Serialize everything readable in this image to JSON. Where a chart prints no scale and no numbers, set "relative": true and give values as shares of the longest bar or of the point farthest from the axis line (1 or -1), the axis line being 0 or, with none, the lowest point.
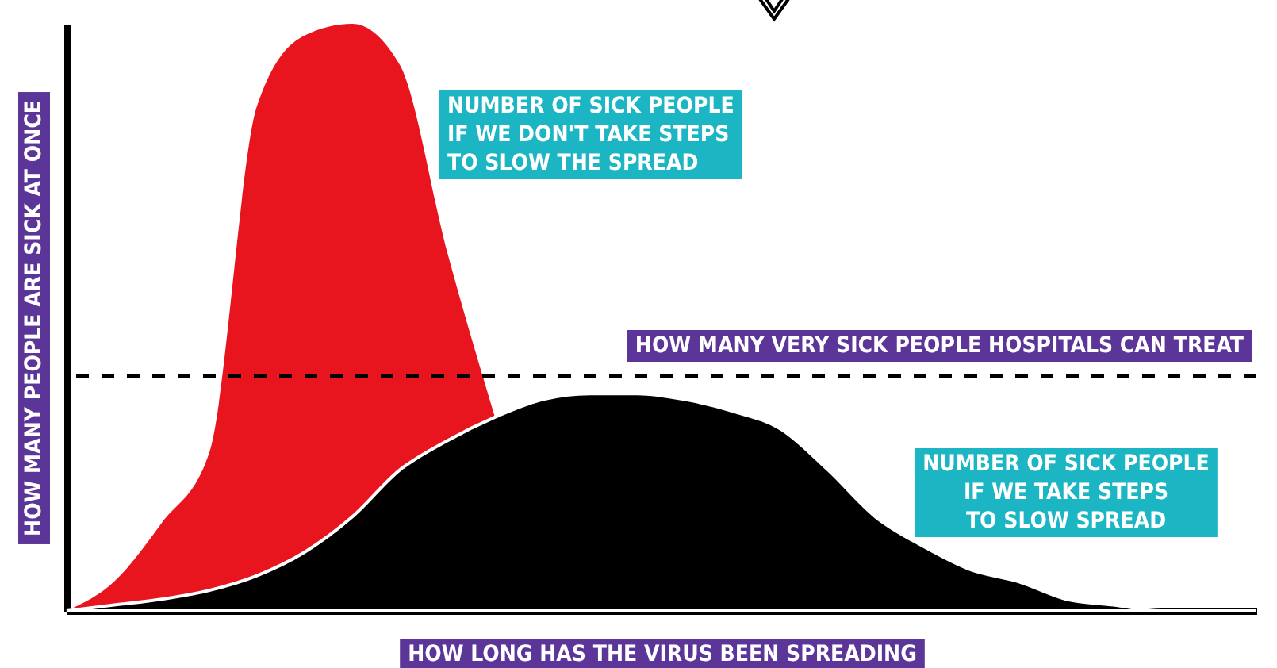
{
  "chart_data": {
    "type": "area",
    "relative": true,
    "xlabel": "HOW LONG HAS THE VIRUS BEEN SPREADING",
    "ylabel": "HOW MANY PEOPLE ARE SICK AT ONCE",
    "categories": [
      null,
      null,
      null,
      null,
      null,
      null,
      null,
      null,
      null,
      null,
      null,
      null,
      null,
      null,
      null,
      null,
      null,
      null,
      null,
      null,
      null,
      null,
      null,
      null,
      null,
      null
    ],
    "series": [
      {
        "name": "NUMBER OF SICK PEOPLE\nIF WE DON'T TAKE STEPS\nTO SLOW THE SPREAD",
        "color": "#e8141e",
        "values": [
          0,
          0.05,
          0.15,
          0.27,
          0.86,
          0.98,
          1,
          0.93,
          0.61,
          0.33,
          null,
          null,
          null,
          null,
          null,
          null,
          null,
          null,
          null,
          null,
          null,
          null,
          null,
          null,
          null,
          null
        ]
      },
      {
        "name": "NUMBER OF SICK PEOPLE\nIF WE TAKE STEPS\nTO SLOW SPREAD",
        "color": "#000000",
        "values": [
          0,
          0.01,
          0.02,
          0.035,
          0.06,
          0.1,
          0.16,
          0.24,
          0.29,
          0.33,
          0.36,
          0.37,
          0.37,
          0.36,
          0.34,
          0.31,
          0.24,
          0.16,
          0.11,
          0.07,
          0.05,
          0.02,
          0.01,
          0,
          0,
          0
        ]
      }
    ],
    "ref_lines": [
      {
        "axis": "y",
        "value": 0.4,
        "label": "HOW MANY VERY SICK PEOPLE HOSPITALS CAN TREAT",
        "color": "#000000",
        "line_style": "dashed"
      }
    ]
  }
}
